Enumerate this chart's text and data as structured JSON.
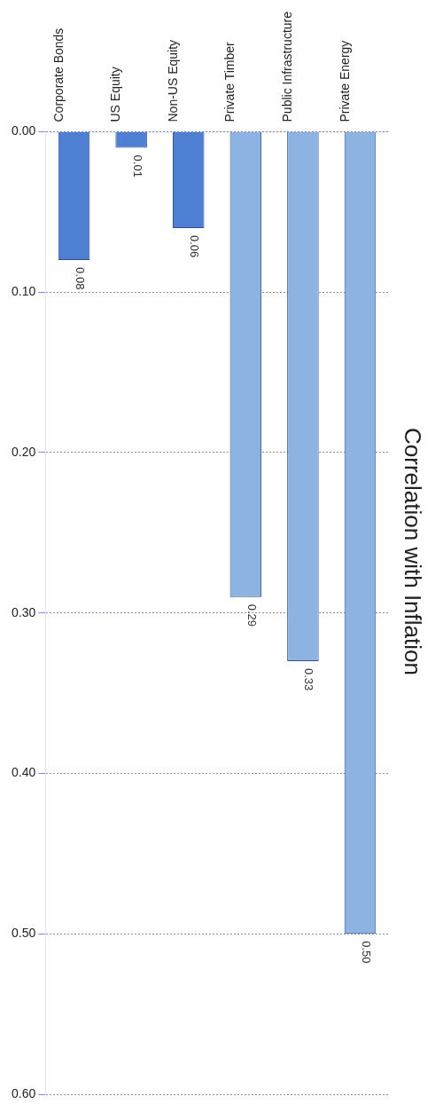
{
  "chart_data": {
    "type": "bar",
    "title": "Correlation with Inflation",
    "categories": [
      "Corporate Bonds",
      "US Equity",
      "Non-US Equity",
      "Private Timber",
      "Public Infrastructure",
      "Private Energy"
    ],
    "values": [
      0.08,
      0.01,
      0.06,
      0.29,
      0.33,
      0.5
    ],
    "colors": [
      "#4f7fd3",
      "#4f7fd3",
      "#4f7fd3",
      "#8db3e2",
      "#8db3e2",
      "#8db3e2"
    ],
    "ylim": [
      0.6,
      0
    ],
    "yticks": [
      {
        "value": 0,
        "label": "0.00"
      },
      {
        "value": 0.1,
        "label": "0.10"
      },
      {
        "value": 0.2,
        "label": "0.20"
      },
      {
        "value": 0.3,
        "label": "0.30"
      },
      {
        "value": 0.4,
        "label": "0.40"
      },
      {
        "value": 0.5,
        "label": "0.50"
      },
      {
        "value": 0.6,
        "label": "0.60"
      }
    ],
    "value_labels": [
      "0.08",
      "0.01",
      "0.06",
      "0.29",
      "0.33",
      "0.50"
    ],
    "grid": "y",
    "legend": false
  }
}
